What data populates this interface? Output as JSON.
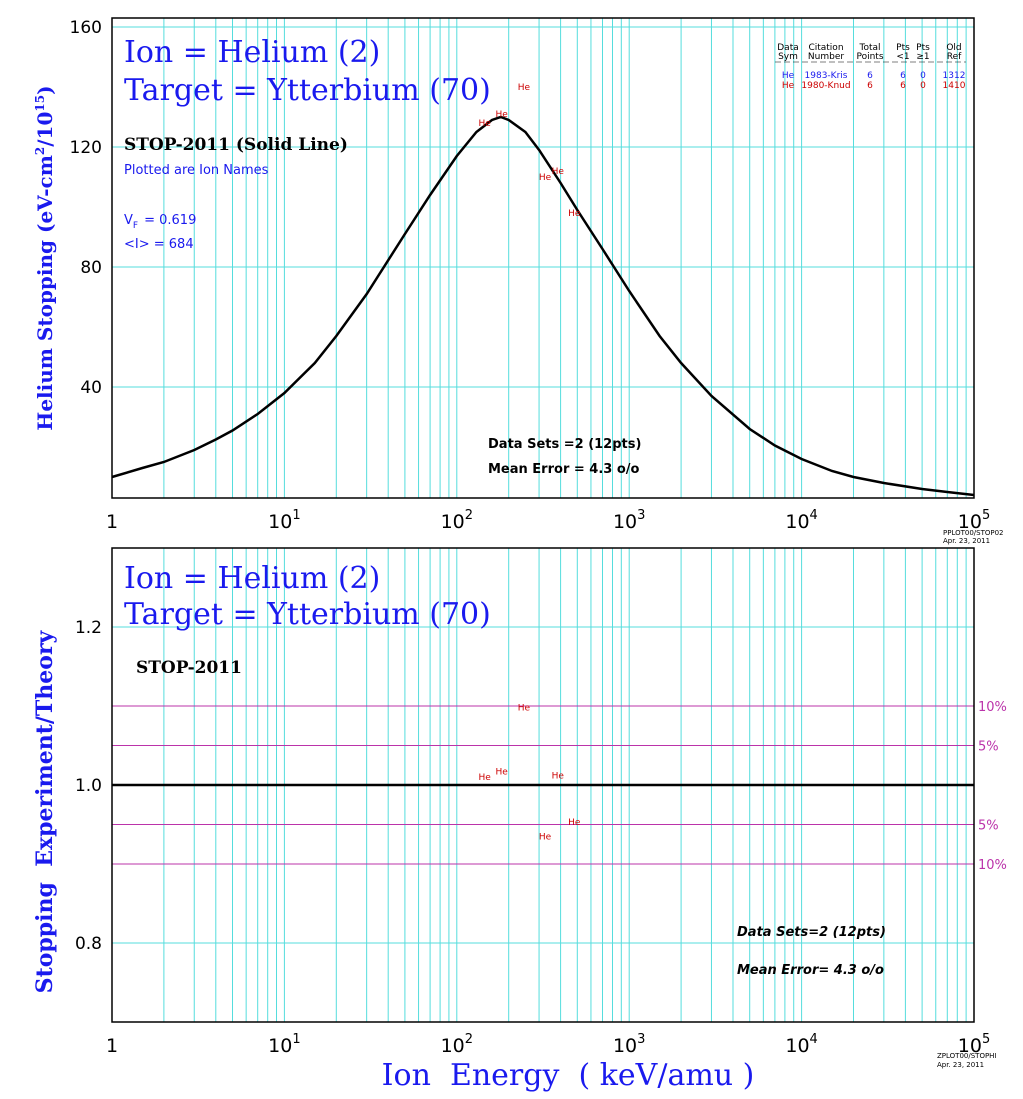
{
  "colors": {
    "grid": "#55dddd",
    "title": "#1a1aee",
    "curve": "#000000",
    "marker_red": "#cc0000",
    "marker_blue": "#1a1aee",
    "error_band": "#bb33aa"
  },
  "top": {
    "title_line1": "Ion = Helium (2)",
    "title_line2": "Target = Ytterbium (70)",
    "stop_label": "STOP-2011 (Solid Line)",
    "plotted_label": "Plotted are Ion Names",
    "vf_label": "V",
    "vf_sub": "F",
    "vf_value": "= 0.619",
    "i_label": "<I> = 684",
    "data_sets": "Data Sets =2 (12pts)",
    "mean_error": "Mean Error =  4.3 o/o",
    "footer_line1": "PPLOT00/STOP02",
    "footer_line2": "Apr. 23, 2011",
    "legend": {
      "header_row1": [
        "Data",
        "Citation",
        "Total",
        "Pts",
        "Pts",
        "Old"
      ],
      "header_row2": [
        "Sym",
        "Number",
        "Points",
        "<1",
        "≥1",
        "Ref"
      ],
      "rows": [
        {
          "sym": "He",
          "citation": "1983-Kris",
          "total": "6",
          "lt1": "6",
          "ge1": "0",
          "ref": "1312",
          "color": "#1a1aee"
        },
        {
          "sym": "He",
          "citation": "1980-Knud",
          "total": "6",
          "lt1": "6",
          "ge1": "0",
          "ref": "1410",
          "color": "#cc0000"
        }
      ]
    }
  },
  "bottom": {
    "title_line1": "Ion = Helium (2)",
    "title_line2": "Target = Ytterbium (70)",
    "stop_label": "STOP-2011",
    "data_sets": "Data Sets=2 (12pts)",
    "mean_error": "Mean Error=  4.3 o/o",
    "footer_line1": "ZPLOT00/STOPHI",
    "footer_line2": "Apr. 23, 2011",
    "band_labels": [
      {
        "label": "10%",
        "y": 1.1
      },
      {
        "label": "5%",
        "y": 1.05
      },
      {
        "label": "5%",
        "y": 0.95
      },
      {
        "label": "10%",
        "y": 0.9
      }
    ]
  },
  "x_axis_title": "Ion  Energy  ( keV/amu )",
  "chart_data": [
    {
      "type": "line",
      "ylabel_parts": [
        "Helium Stopping (eV-cm",
        "2",
        "/10",
        "15",
        ")"
      ],
      "x_scale": "log",
      "xlim": [
        1,
        100000
      ],
      "ylim": [
        3,
        163
      ],
      "x_tick_labels": [
        {
          "base": "1",
          "exp": ""
        },
        {
          "base": "10",
          "exp": "1"
        },
        {
          "base": "10",
          "exp": "2"
        },
        {
          "base": "10",
          "exp": "3"
        },
        {
          "base": "10",
          "exp": "4"
        },
        {
          "base": "10",
          "exp": "5"
        }
      ],
      "y_ticks": [
        40,
        80,
        120,
        160
      ],
      "grid": true,
      "curve": {
        "x": [
          1,
          1.5,
          2,
          3,
          4,
          5,
          7,
          10,
          15,
          20,
          30,
          50,
          70,
          100,
          130,
          160,
          180,
          200,
          250,
          300,
          400,
          500,
          700,
          1000,
          1500,
          2000,
          3000,
          5000,
          7000,
          10000,
          15000,
          20000,
          30000,
          50000,
          70000,
          100000
        ],
        "y": [
          10,
          13,
          15,
          19,
          22.5,
          25.5,
          31,
          38,
          48,
          57,
          71,
          91,
          104,
          117,
          125,
          129,
          130,
          129,
          125,
          119,
          108,
          99,
          86,
          72,
          57,
          48,
          37,
          26,
          20.5,
          16,
          12,
          10,
          8,
          6,
          5,
          4
        ]
      },
      "points": [
        {
          "x": 145,
          "y": 128,
          "label": "He",
          "series": "1980-Knud"
        },
        {
          "x": 182,
          "y": 131,
          "label": "He",
          "series": "1980-Knud"
        },
        {
          "x": 245,
          "y": 140,
          "label": "He",
          "series": "1980-Knud"
        },
        {
          "x": 325,
          "y": 110,
          "label": "He",
          "series": "1980-Knud"
        },
        {
          "x": 385,
          "y": 112,
          "label": "He",
          "series": "1980-Knud"
        },
        {
          "x": 480,
          "y": 98,
          "label": "He",
          "series": "1980-Knud"
        }
      ]
    },
    {
      "type": "scatter",
      "ylabel_parts": [
        "Stopping  Experiment/Theory"
      ],
      "x_scale": "log",
      "xlim": [
        1,
        100000
      ],
      "ylim": [
        0.7,
        1.3
      ],
      "x_tick_labels": [
        {
          "base": "1",
          "exp": ""
        },
        {
          "base": "10",
          "exp": "1"
        },
        {
          "base": "10",
          "exp": "2"
        },
        {
          "base": "10",
          "exp": "3"
        },
        {
          "base": "10",
          "exp": "4"
        },
        {
          "base": "10",
          "exp": "5"
        }
      ],
      "y_ticks": [
        0.8,
        1.0,
        1.2
      ],
      "y_tick_labels": [
        "0.8",
        "1.0",
        "1.2"
      ],
      "grid": true,
      "reference_line": 1.0,
      "bands": [
        1.1,
        1.05,
        0.95,
        0.9
      ],
      "points": [
        {
          "x": 145,
          "y": 1.01,
          "label": "He",
          "series": "1980-Knud"
        },
        {
          "x": 182,
          "y": 1.017,
          "label": "He",
          "series": "1980-Knud"
        },
        {
          "x": 245,
          "y": 1.098,
          "label": "He",
          "series": "1980-Knud"
        },
        {
          "x": 325,
          "y": 0.935,
          "label": "He",
          "series": "1980-Knud"
        },
        {
          "x": 385,
          "y": 1.012,
          "label": "He",
          "series": "1980-Knud"
        },
        {
          "x": 480,
          "y": 0.953,
          "label": "He",
          "series": "1980-Knud"
        }
      ]
    }
  ]
}
